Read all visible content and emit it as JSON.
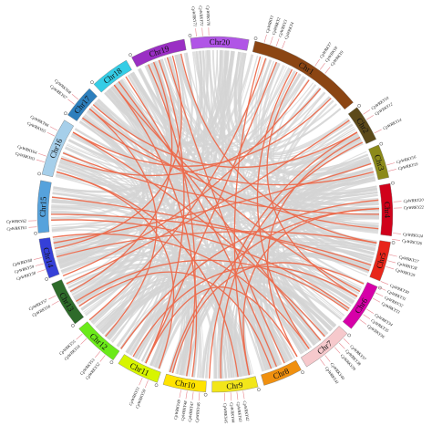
{
  "chromosomes": [
    {
      "id": "chr1",
      "label": "Chr1",
      "color": "#8b4513"
    },
    {
      "id": "chr2",
      "label": "Chr2",
      "color": "#5c4a1a"
    },
    {
      "id": "chr3",
      "label": "Chr3",
      "color": "#8c8a1a"
    },
    {
      "id": "chr4",
      "label": "Chr4",
      "color": "#d0021b"
    },
    {
      "id": "chr5",
      "label": "Chr5",
      "color": "#e8261a"
    },
    {
      "id": "chr6",
      "label": "Chr6",
      "color": "#d600a8"
    },
    {
      "id": "chr7",
      "label": "Chr7",
      "color": "#f6c9cc"
    },
    {
      "id": "chr8",
      "label": "Chr8",
      "color": "#f0900f"
    },
    {
      "id": "chr9",
      "label": "Chr9",
      "color": "#f2e61a"
    },
    {
      "id": "chr10",
      "label": "Chr10",
      "color": "#ffe300"
    },
    {
      "id": "chr11",
      "label": "Chr11",
      "color": "#d7f500"
    },
    {
      "id": "chr12",
      "label": "Chr12",
      "color": "#6bea1a"
    },
    {
      "id": "chr13",
      "label": "Chr13",
      "color": "#2e6b2a"
    },
    {
      "id": "chr14",
      "label": "Chr14",
      "color": "#3540d8"
    },
    {
      "id": "chr15",
      "label": "Chr15",
      "color": "#56a2dc"
    },
    {
      "id": "chr16",
      "label": "Chr16",
      "color": "#a6cfea"
    },
    {
      "id": "chr17",
      "label": "Chr17",
      "color": "#2d7fbd"
    },
    {
      "id": "chr18",
      "label": "Chr18",
      "color": "#35cde6"
    },
    {
      "id": "chr19",
      "label": "Chr19",
      "color": "#9a2fc4"
    },
    {
      "id": "chr20",
      "label": "Chr20",
      "color": "#b055e6"
    }
  ],
  "genes": [
    "CpWRKY71",
    "CpWRKY72",
    "CpWRKY70",
    "CpWRKY1",
    "CpWRKY2",
    "CpWRKY3",
    "CpWRKY4",
    "CpWRKY7",
    "CpWRKY8",
    "CpWRKY9",
    "CpWRKY10",
    "CpWRKY12",
    "CpWRKY14",
    "CpWRKY16",
    "CpWRKY19",
    "CpWRKY20",
    "CpWRKY22",
    "CpWRKY24",
    "CpWRKY26",
    "CpWRKY27",
    "CpWRKY28",
    "CpWRKY29",
    "CpWRKY30",
    "CpWRKY31",
    "CpWRKY32",
    "CpWRKY33",
    "CpWRKY34",
    "CpWRKY35",
    "CpWRKY36",
    "CpWRKY37",
    "CpWRKY38",
    "CpWRKY39",
    "CpWRKY40",
    "CpWRKY41",
    "CpWRKY42",
    "CpWRKY43",
    "CpWRKY44",
    "CpWRKY45",
    "CpWRKY46",
    "CpWRKY47",
    "CpWRKY48",
    "CpWRKY49",
    "CpWRKY50",
    "CpWRKY51",
    "CpWRKY52",
    "CpWRKY53",
    "CpWRKY54",
    "CpWRKY55",
    "CpWRKY56",
    "CpWRKY57",
    "CpWRKY58",
    "CpWRKY59",
    "CpWRKY60",
    "CpWRKY61",
    "CpWRKY62",
    "CpWRKY63",
    "CpWRKY64",
    "CpWRKY65",
    "CpWRKY66",
    "CpWRKY67",
    "CpWRKY68"
  ],
  "colors": {
    "background_links": "#d4d4d4",
    "duplicated_links": "#ec6a4c",
    "gene_tick": "#e88890"
  }
}
